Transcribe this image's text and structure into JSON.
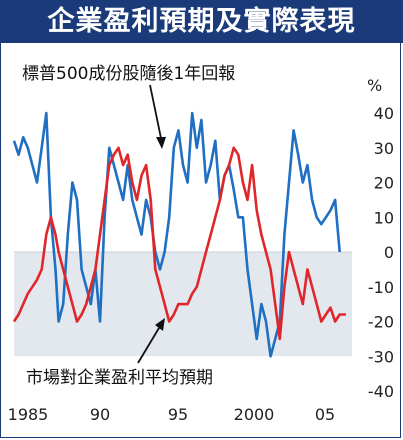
{
  "title": "企業盈利預期及實際表現",
  "colors": {
    "header_bg": "#1b3a7a",
    "shade": "#e3e8ef",
    "blue_series": "#1f6fc2",
    "red_series": "#e0262a",
    "annotation_bg": "#ffffff"
  },
  "chart_data": {
    "type": "line",
    "title": "企業盈利預期及實際表現",
    "y_unit": "%",
    "ylim": [
      -40,
      45
    ],
    "y_ticks": [
      40,
      30,
      20,
      10,
      0,
      -10,
      -20,
      -30,
      -40
    ],
    "y_tick_labels": [
      "40",
      "30",
      "20",
      "10",
      "0",
      "-10",
      "-20",
      "-30",
      "-40"
    ],
    "xlim": [
      1985,
      2007
    ],
    "x_ticks": [
      1985,
      1990,
      1995,
      2000,
      2005
    ],
    "x_tick_labels": [
      "1985",
      "90",
      "95",
      "2000",
      "05"
    ],
    "negative_region_shaded": true,
    "annotations": [
      {
        "text": "標普500成份股隨後1年回報",
        "points_to": "blue"
      },
      {
        "text": "市場對企業盈利平均預期",
        "points_to": "red"
      }
    ],
    "series": [
      {
        "name": "標普500成份股隨後1年回報",
        "color": "#1f6fc2",
        "x": [
          1985.0,
          1985.3,
          1985.6,
          1985.9,
          1986.2,
          1986.5,
          1986.8,
          1987.1,
          1987.4,
          1987.7,
          1987.9,
          1988.2,
          1988.5,
          1988.8,
          1989.1,
          1989.4,
          1989.7,
          1990.0,
          1990.3,
          1990.6,
          1990.9,
          1991.2,
          1991.5,
          1991.8,
          1992.1,
          1992.4,
          1992.7,
          1993.0,
          1993.3,
          1993.6,
          1993.9,
          1994.2,
          1994.5,
          1994.8,
          1995.1,
          1995.4,
          1995.7,
          1996.0,
          1996.3,
          1996.6,
          1996.9,
          1997.2,
          1997.5,
          1997.8,
          1998.1,
          1998.4,
          1998.7,
          1999.0,
          1999.3,
          1999.6,
          1999.9,
          2000.2,
          2000.5,
          2000.8,
          2001.1,
          2001.4,
          2001.7,
          2002.0,
          2002.3,
          2002.6,
          2002.9,
          2003.2,
          2003.5,
          2003.8,
          2004.1,
          2004.4,
          2004.7,
          2005.0,
          2005.3,
          2005.6,
          2005.9,
          2006.2
        ],
        "y": [
          32,
          28,
          33,
          30,
          25,
          20,
          30,
          40,
          10,
          -5,
          -20,
          -15,
          5,
          20,
          15,
          -5,
          -10,
          -15,
          -5,
          -20,
          10,
          30,
          25,
          20,
          15,
          25,
          15,
          10,
          5,
          15,
          10,
          0,
          -5,
          0,
          10,
          30,
          35,
          25,
          20,
          40,
          30,
          38,
          20,
          25,
          32,
          15,
          22,
          25,
          18,
          10,
          10,
          -5,
          -15,
          -25,
          -15,
          -20,
          -30,
          -25,
          -20,
          5,
          20,
          35,
          28,
          20,
          25,
          15,
          10,
          8,
          10,
          12,
          15,
          0
        ],
        "end_marker": true
      },
      {
        "name": "市場對企業盈利平均預期",
        "color": "#e0262a",
        "x": [
          1985.0,
          1985.3,
          1985.6,
          1985.9,
          1986.2,
          1986.5,
          1986.8,
          1987.1,
          1987.4,
          1987.7,
          1987.9,
          1988.2,
          1988.5,
          1988.8,
          1989.1,
          1989.4,
          1989.7,
          1990.0,
          1990.3,
          1990.6,
          1990.9,
          1991.2,
          1991.5,
          1991.8,
          1992.1,
          1992.4,
          1992.7,
          1993.0,
          1993.3,
          1993.6,
          1993.9,
          1994.2,
          1994.5,
          1994.8,
          1995.1,
          1995.4,
          1995.7,
          1996.0,
          1996.3,
          1996.6,
          1996.9,
          1997.2,
          1997.5,
          1997.8,
          1998.1,
          1998.4,
          1998.7,
          1999.0,
          1999.3,
          1999.6,
          1999.9,
          2000.2,
          2000.5,
          2000.8,
          2001.1,
          2001.4,
          2001.7,
          2002.0,
          2002.3,
          2002.6,
          2002.9,
          2003.2,
          2003.5,
          2003.8,
          2004.1,
          2004.4,
          2004.7,
          2005.0,
          2005.3,
          2005.6,
          2005.9,
          2006.2,
          2006.6
        ],
        "y": [
          -20,
          -18,
          -15,
          -12,
          -10,
          -8,
          -5,
          5,
          10,
          5,
          0,
          -5,
          -10,
          -15,
          -20,
          -18,
          -15,
          -10,
          -5,
          5,
          15,
          25,
          28,
          30,
          25,
          28,
          20,
          15,
          22,
          25,
          15,
          -5,
          -10,
          -15,
          -20,
          -18,
          -15,
          -15,
          -15,
          -12,
          -10,
          -5,
          0,
          5,
          10,
          15,
          22,
          25,
          30,
          28,
          20,
          15,
          25,
          12,
          5,
          0,
          -5,
          -15,
          -25,
          -10,
          0,
          -5,
          -10,
          -15,
          -5,
          -10,
          -15,
          -20,
          -18,
          -16,
          -20,
          -18,
          -18
        ],
        "end_marker": false
      }
    ]
  }
}
